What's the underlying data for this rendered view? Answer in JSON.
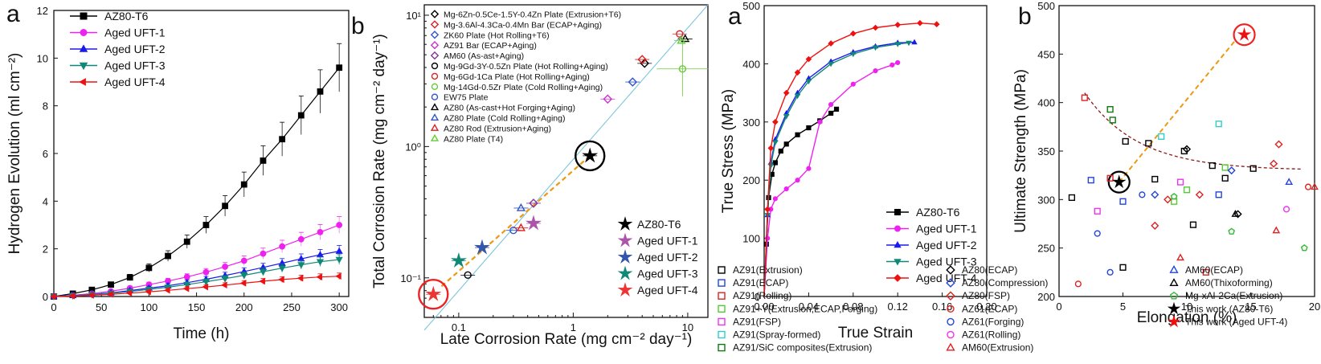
{
  "panels": [
    {
      "letter": "a"
    },
    {
      "letter": "b"
    },
    {
      "letter": "a"
    },
    {
      "letter": "b"
    }
  ],
  "chart_data": [
    {
      "type": "line",
      "xlabel": "Time (h)",
      "ylabel": "Hydrogen Evolution (ml cm⁻²)",
      "xlim": [
        0,
        310
      ],
      "ylim": [
        0,
        12
      ],
      "xticks": [
        "0",
        "50",
        "100",
        "150",
        "200",
        "250",
        "300"
      ],
      "yticks": [
        "0",
        "2",
        "4",
        "6",
        "8",
        "10",
        "12"
      ],
      "legend_position": "top-left",
      "series": [
        {
          "name": "AZ80-T6",
          "color": "#000000",
          "marker": "square",
          "x": [
            0,
            20,
            40,
            60,
            80,
            100,
            120,
            140,
            160,
            180,
            200,
            220,
            240,
            260,
            280,
            300
          ],
          "y": [
            0,
            0.12,
            0.28,
            0.5,
            0.8,
            1.2,
            1.7,
            2.3,
            3.0,
            3.8,
            4.7,
            5.7,
            6.6,
            7.6,
            8.6,
            9.6
          ]
        },
        {
          "name": "Aged UFT-1",
          "color": "#ee22ee",
          "marker": "circle",
          "x": [
            0,
            20,
            40,
            60,
            80,
            100,
            120,
            140,
            160,
            180,
            200,
            220,
            240,
            260,
            280,
            300
          ],
          "y": [
            0,
            0.05,
            0.12,
            0.22,
            0.35,
            0.5,
            0.65,
            0.82,
            1.02,
            1.25,
            1.5,
            1.8,
            2.1,
            2.4,
            2.7,
            3.0
          ]
        },
        {
          "name": "Aged UFT-2",
          "color": "#1a1aee",
          "marker": "triangle-up",
          "x": [
            0,
            20,
            40,
            60,
            80,
            100,
            120,
            140,
            160,
            180,
            200,
            220,
            240,
            260,
            280,
            300
          ],
          "y": [
            0,
            0.04,
            0.09,
            0.15,
            0.25,
            0.35,
            0.45,
            0.58,
            0.72,
            0.88,
            1.05,
            1.22,
            1.4,
            1.58,
            1.75,
            1.9
          ]
        },
        {
          "name": "Aged UFT-3",
          "color": "#118877",
          "marker": "triangle-down",
          "x": [
            0,
            20,
            40,
            60,
            80,
            100,
            120,
            140,
            160,
            180,
            200,
            220,
            240,
            260,
            280,
            300
          ],
          "y": [
            0,
            0.03,
            0.08,
            0.13,
            0.21,
            0.3,
            0.39,
            0.5,
            0.62,
            0.75,
            0.89,
            1.04,
            1.19,
            1.33,
            1.46,
            1.55
          ]
        },
        {
          "name": "Aged UFT-4",
          "color": "#ee1111",
          "marker": "diamond-left",
          "x": [
            0,
            20,
            40,
            60,
            80,
            100,
            120,
            140,
            160,
            180,
            200,
            220,
            240,
            260,
            280,
            300
          ],
          "y": [
            0,
            0.02,
            0.05,
            0.09,
            0.14,
            0.2,
            0.26,
            0.33,
            0.4,
            0.48,
            0.56,
            0.64,
            0.71,
            0.77,
            0.82,
            0.85
          ]
        }
      ]
    },
    {
      "type": "scatter",
      "xlabel": "Late Corrosion Rate (mg cm⁻² day⁻¹)",
      "ylabel": "Total Corrosion Rate (mg cm⁻² day⁻¹)",
      "xscale": "log",
      "yscale": "log",
      "xlim": [
        0.05,
        15
      ],
      "ylim": [
        0.05,
        12
      ],
      "xticks": [
        "0.1",
        "1",
        "10"
      ],
      "yticks": [
        "10⁻¹",
        "10⁰",
        "10¹"
      ],
      "legend_position": "upper-left",
      "series": [
        {
          "name": "Mg-6Zn-0.5Ce-1.5Y-0.4Zn Plate (Extrusion+T6)",
          "color": "#000000",
          "marker": "diamond",
          "x": [
            4.2
          ],
          "y": [
            4.3
          ]
        },
        {
          "name": "Mg-3.6Al-4.3Ca-0.4Mn Bar (ECAP+Aging)",
          "color": "#dd2222",
          "marker": "diamond",
          "x": [
            4.0
          ],
          "y": [
            4.6
          ]
        },
        {
          "name": "ZK60 Plate (Hot Rolling+T6)",
          "color": "#3355cc",
          "marker": "diamond",
          "x": [
            3.3
          ],
          "y": [
            3.1
          ]
        },
        {
          "name": "AZ91 Bar (ECAP+Aging)",
          "color": "#cc33cc",
          "marker": "diamond",
          "x": [
            2.0
          ],
          "y": [
            2.3
          ]
        },
        {
          "name": "AM60 (As-ast+Aging)",
          "color": "#883399",
          "marker": "diamond",
          "x": [
            0.45
          ],
          "y": [
            0.37
          ]
        },
        {
          "name": "Mg-9Gd-3Y-0.5Zn Plate (Hot Rolling+Aging)",
          "color": "#000000",
          "marker": "circle",
          "x": [
            0.12
          ],
          "y": [
            0.105
          ]
        },
        {
          "name": "Mg-6Gd-1Ca Plate (Hot Rolling+Aging)",
          "color": "#dd2222",
          "marker": "circle",
          "x": [
            8.5
          ],
          "y": [
            7.2
          ]
        },
        {
          "name": "Mg-14Gd-0.5Zr Plate (Cold Rolling+Aging)",
          "color": "#66cc33",
          "marker": "circle",
          "x": [
            9.0
          ],
          "y": [
            3.9
          ]
        },
        {
          "name": "EW75 Plate",
          "color": "#3355cc",
          "marker": "circle",
          "x": [
            0.3
          ],
          "y": [
            0.23
          ]
        },
        {
          "name": "AZ80 (As-cast+Hot Forging+Aging)",
          "color": "#000000",
          "marker": "triangle",
          "x": [
            9.5
          ],
          "y": [
            6.6
          ]
        },
        {
          "name": "AZ80 Plate (Cold Rolling+Aging)",
          "color": "#3355cc",
          "marker": "triangle",
          "x": [
            0.35
          ],
          "y": [
            0.34
          ]
        },
        {
          "name": "AZ80 Rod (Extrusion+Aging)",
          "color": "#dd2222",
          "marker": "triangle",
          "x": [
            0.35
          ],
          "y": [
            0.24
          ]
        },
        {
          "name": "AZ80 Plate (T4)",
          "color": "#66cc33",
          "marker": "triangle",
          "x": [
            8.8
          ],
          "y": [
            6.4
          ]
        },
        {
          "name": "AZ80-T6",
          "color": "#000000",
          "marker": "star",
          "x": [
            1.4
          ],
          "y": [
            0.85
          ]
        },
        {
          "name": "Aged UFT-1",
          "color": "#aa55aa",
          "marker": "star",
          "x": [
            0.45
          ],
          "y": [
            0.26
          ]
        },
        {
          "name": "Aged UFT-2",
          "color": "#3355aa",
          "marker": "star",
          "x": [
            0.16
          ],
          "y": [
            0.17
          ]
        },
        {
          "name": "Aged UFT-3",
          "color": "#118877",
          "marker": "star",
          "x": [
            0.1
          ],
          "y": [
            0.135
          ]
        },
        {
          "name": "Aged UFT-4",
          "color": "#ee3333",
          "marker": "star",
          "x": [
            0.06
          ],
          "y": [
            0.075
          ]
        }
      ]
    },
    {
      "type": "line",
      "xlabel": "True Strain",
      "ylabel": "True Stress (MPa)",
      "xlim": [
        0,
        0.2
      ],
      "ylim": [
        0,
        500
      ],
      "xticks": [
        "0.00",
        "0.04",
        "0.08",
        "0.12",
        "0.16",
        "0.20"
      ],
      "yticks": [
        "0",
        "100",
        "200",
        "300",
        "400",
        "500"
      ],
      "legend_position": "bottom-right",
      "series": [
        {
          "name": "AZ80-T6",
          "color": "#000000",
          "marker": "square",
          "x": [
            0,
            0.002,
            0.004,
            0.007,
            0.01,
            0.015,
            0.02,
            0.03,
            0.04,
            0.05,
            0.06,
            0.065
          ],
          "y": [
            0,
            90,
            170,
            210,
            230,
            250,
            262,
            278,
            290,
            302,
            315,
            322
          ]
        },
        {
          "name": "Aged UFT-1",
          "color": "#ee22ee",
          "marker": "circle",
          "x": [
            0,
            0.003,
            0.006,
            0.01,
            0.02,
            0.03,
            0.04,
            0.05,
            0.06,
            0.08,
            0.1,
            0.115,
            0.12
          ],
          "y": [
            0,
            100,
            150,
            168,
            185,
            200,
            220,
            300,
            330,
            365,
            388,
            398,
            402
          ]
        },
        {
          "name": "Aged UFT-2",
          "color": "#1a1aee",
          "marker": "triangle-up",
          "x": [
            0,
            0.003,
            0.006,
            0.01,
            0.02,
            0.03,
            0.04,
            0.06,
            0.08,
            0.1,
            0.12,
            0.135
          ],
          "y": [
            0,
            140,
            230,
            270,
            315,
            350,
            375,
            404,
            420,
            430,
            436,
            437
          ]
        },
        {
          "name": "Aged UFT-3",
          "color": "#118877",
          "marker": "triangle-down",
          "x": [
            0,
            0.003,
            0.006,
            0.01,
            0.02,
            0.03,
            0.04,
            0.06,
            0.08,
            0.1,
            0.12,
            0.13
          ],
          "y": [
            0,
            140,
            225,
            265,
            310,
            345,
            370,
            400,
            417,
            428,
            434,
            436
          ]
        },
        {
          "name": "Aged UFT-4",
          "color": "#ee1111",
          "marker": "diamond",
          "x": [
            0,
            0.003,
            0.006,
            0.01,
            0.02,
            0.03,
            0.04,
            0.06,
            0.08,
            0.1,
            0.12,
            0.14,
            0.155
          ],
          "y": [
            0,
            150,
            255,
            300,
            350,
            385,
            408,
            435,
            452,
            462,
            467,
            470,
            468
          ]
        }
      ]
    },
    {
      "type": "scatter",
      "xlabel": "Elongation (%)",
      "ylabel": "Ultimate Strength (MPa)",
      "xlim": [
        0,
        20
      ],
      "ylim": [
        200,
        500
      ],
      "xticks": [
        "0",
        "5",
        "10",
        "15",
        "20"
      ],
      "yticks": [
        "200",
        "250",
        "300",
        "350",
        "400",
        "450",
        "500"
      ],
      "legend_position": "below",
      "series": [
        {
          "name": "AZ91(Extrusion)",
          "color": "#000000",
          "marker": "square",
          "x": [
            1,
            5,
            5.2,
            7,
            7.5,
            9.8,
            10.5,
            12,
            13,
            15.2
          ],
          "y": [
            302,
            230,
            360,
            358,
            321,
            350,
            274,
            335,
            322,
            332
          ]
        },
        {
          "name": "AZ91(ECAP)",
          "color": "#2244dd",
          "marker": "square",
          "x": [
            2.5,
            5,
            12.5
          ],
          "y": [
            320,
            298,
            305
          ]
        },
        {
          "name": "AZ91(Rolling)",
          "color": "#dd2222",
          "marker": "square",
          "x": [
            2,
            4,
            11.5
          ],
          "y": [
            405,
            322,
            225
          ]
        },
        {
          "name": "AZ91+Y(Extrusion,ECAP,Forging)",
          "color": "#55cc33",
          "marker": "square",
          "x": [
            9,
            10,
            13
          ],
          "y": [
            298,
            310,
            333
          ]
        },
        {
          "name": "AZ91(FSP)",
          "color": "#ee33ee",
          "marker": "square",
          "x": [
            3,
            9.5
          ],
          "y": [
            288,
            318
          ]
        },
        {
          "name": "AZ91(Spray-formed)",
          "color": "#33cccc",
          "marker": "square",
          "x": [
            8,
            12.5
          ],
          "y": [
            365,
            378
          ]
        },
        {
          "name": "AZ91/SiC composites(Extrusion)",
          "color": "#117711",
          "marker": "square",
          "x": [
            4,
            4.2
          ],
          "y": [
            393,
            382
          ]
        },
        {
          "name": "AZ80(ECAP)",
          "color": "#000000",
          "marker": "diamond",
          "x": [
            14,
            10
          ],
          "y": [
            285,
            352
          ]
        },
        {
          "name": "AZ80(Compression)",
          "color": "#2244dd",
          "marker": "diamond",
          "x": [
            7.5,
            13.5
          ],
          "y": [
            305,
            330
          ]
        },
        {
          "name": "AZ80(FSP)",
          "color": "#dd2222",
          "marker": "diamond",
          "x": [
            7.5,
            8.5,
            11,
            16.8,
            17.2
          ],
          "y": [
            273,
            300,
            305,
            337,
            357
          ]
        },
        {
          "name": "AZ61(ECAP)",
          "color": "#dd2222",
          "marker": "circle",
          "x": [
            1.5,
            19.5
          ],
          "y": [
            213,
            313
          ]
        },
        {
          "name": "AZ61(Forging)",
          "color": "#2244dd",
          "marker": "circle",
          "x": [
            3,
            4,
            6.5
          ],
          "y": [
            265,
            225,
            305
          ]
        },
        {
          "name": "AZ61(Rolling)",
          "color": "#ee33ee",
          "marker": "circle",
          "x": [
            17.8
          ],
          "y": [
            290
          ]
        },
        {
          "name": "AM60(Extrusion)",
          "color": "#dd2222",
          "marker": "triangle",
          "x": [
            9.5,
            17,
            20
          ],
          "y": [
            240,
            268,
            313
          ]
        },
        {
          "name": "AM60(ECAP)",
          "color": "#2244dd",
          "marker": "triangle",
          "x": [
            18
          ],
          "y": [
            318
          ]
        },
        {
          "name": "AM60(Thixoforming)",
          "color": "#000000",
          "marker": "triangle",
          "x": [
            13.8
          ],
          "y": [
            285
          ]
        },
        {
          "name": "Mg-xAl-2Ca(Extrusion)",
          "color": "#33bb33",
          "marker": "pentagon",
          "x": [
            9,
            13.5,
            19.2
          ],
          "y": [
            303,
            267,
            250
          ]
        },
        {
          "name": "This work (AZ80-T6)",
          "color": "#000000",
          "marker": "star",
          "x": [
            4.7
          ],
          "y": [
            318
          ]
        },
        {
          "name": "This work (Aged UFT-4)",
          "color": "#ee1111",
          "marker": "star",
          "x": [
            14.5
          ],
          "y": [
            470
          ]
        }
      ]
    }
  ]
}
